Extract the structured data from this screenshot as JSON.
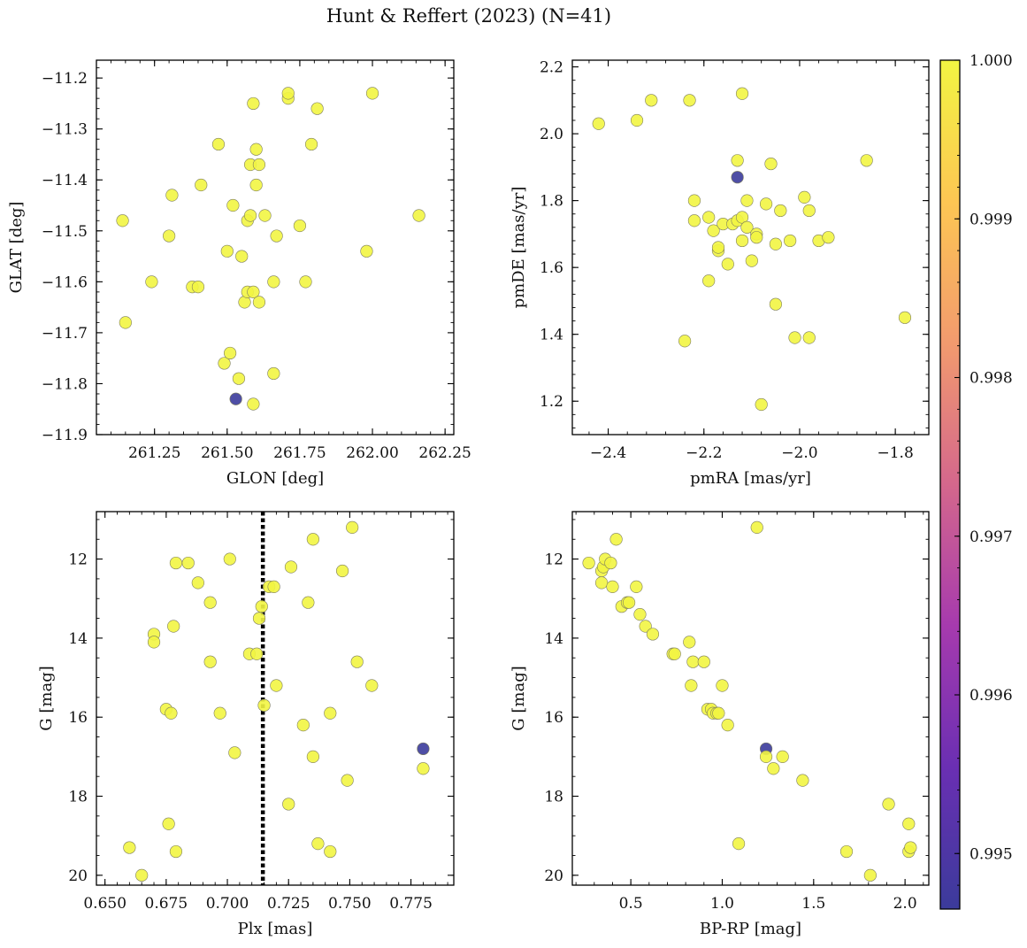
{
  "figure": {
    "title": "Hunt & Reffert (2023) (N=41)"
  },
  "colormap": {
    "name": "plasma",
    "vmin": 0.99465,
    "vmax": 1.0,
    "ticks": [
      0.995,
      0.996,
      0.997,
      0.998,
      0.999,
      1.0
    ],
    "tick_labels": [
      "0.995",
      "0.996",
      "0.997",
      "0.998",
      "0.999",
      "1.000"
    ],
    "stops": [
      "#3b3b9b",
      "#6a2fb3",
      "#a63aae",
      "#d4678c",
      "#f29a6e",
      "#fdc653",
      "#f2f542"
    ]
  },
  "chart_data": [
    {
      "type": "scatter",
      "xlabel": "GLON [deg]",
      "ylabel": "GLAT [deg]",
      "xlim": [
        261.05,
        262.28
      ],
      "ylim": [
        -11.9,
        -11.165
      ],
      "invert_y": false,
      "xticks": [
        261.25,
        261.5,
        261.75,
        262.0,
        262.25
      ],
      "xtick_labels": [
        "261.25",
        "261.50",
        "261.75",
        "262.00",
        "262.25"
      ],
      "yticks": [
        -11.9,
        -11.8,
        -11.7,
        -11.6,
        -11.5,
        -11.4,
        -11.3,
        -11.2
      ],
      "ytick_labels": [
        "−11.9",
        "−11.8",
        "−11.7",
        "−11.6",
        "−11.5",
        "−11.4",
        "−11.3",
        "−11.2"
      ],
      "points": [
        [
          261.14,
          -11.48,
          1
        ],
        [
          261.15,
          -11.68,
          1
        ],
        [
          261.24,
          -11.6,
          1
        ],
        [
          261.3,
          -11.51,
          1
        ],
        [
          261.31,
          -11.43,
          1
        ],
        [
          261.38,
          -11.61,
          1
        ],
        [
          261.4,
          -11.61,
          1
        ],
        [
          261.41,
          -11.41,
          1
        ],
        [
          261.47,
          -11.33,
          1
        ],
        [
          261.49,
          -11.76,
          1
        ],
        [
          261.5,
          -11.54,
          1
        ],
        [
          261.51,
          -11.74,
          1
        ],
        [
          261.52,
          -11.45,
          1
        ],
        [
          261.54,
          -11.79,
          1
        ],
        [
          261.55,
          -11.55,
          1
        ],
        [
          261.56,
          -11.64,
          1
        ],
        [
          261.57,
          -11.62,
          1
        ],
        [
          261.57,
          -11.48,
          1
        ],
        [
          261.58,
          -11.47,
          1
        ],
        [
          261.58,
          -11.37,
          1
        ],
        [
          261.59,
          -11.62,
          1
        ],
        [
          261.59,
          -11.84,
          1
        ],
        [
          261.59,
          -11.25,
          1
        ],
        [
          261.6,
          -11.34,
          1
        ],
        [
          261.6,
          -11.41,
          1
        ],
        [
          261.61,
          -11.37,
          1
        ],
        [
          261.61,
          -11.64,
          1
        ],
        [
          261.63,
          -11.47,
          1
        ],
        [
          261.66,
          -11.6,
          1
        ],
        [
          261.66,
          -11.78,
          1
        ],
        [
          261.67,
          -11.51,
          1
        ],
        [
          261.71,
          -11.24,
          1
        ],
        [
          261.71,
          -11.23,
          1
        ],
        [
          261.75,
          -11.49,
          1
        ],
        [
          261.77,
          -11.6,
          1
        ],
        [
          261.79,
          -11.33,
          1
        ],
        [
          261.81,
          -11.26,
          1
        ],
        [
          261.98,
          -11.54,
          1
        ],
        [
          262.0,
          -11.23,
          1
        ],
        [
          262.16,
          -11.47,
          1
        ],
        [
          261.53,
          -11.83,
          0.99465
        ]
      ]
    },
    {
      "type": "scatter",
      "xlabel": "pmRA [mas/yr]",
      "ylabel": "pmDE [mas/yr]",
      "xlim": [
        -2.475,
        -1.73
      ],
      "ylim": [
        1.1,
        2.22
      ],
      "invert_y": false,
      "xticks": [
        -2.4,
        -2.2,
        -2.0,
        -1.8
      ],
      "xtick_labels": [
        "−2.4",
        "−2.2",
        "−2.0",
        "−1.8"
      ],
      "yticks": [
        1.2,
        1.4,
        1.6,
        1.8,
        2.0,
        2.2
      ],
      "ytick_labels": [
        "1.2",
        "1.4",
        "1.6",
        "1.8",
        "2.0",
        "2.2"
      ],
      "points": [
        [
          -2.42,
          2.03,
          1
        ],
        [
          -2.34,
          2.04,
          1
        ],
        [
          -2.31,
          2.1,
          1
        ],
        [
          -2.23,
          2.1,
          1
        ],
        [
          -2.12,
          2.12,
          1
        ],
        [
          -2.13,
          1.92,
          1
        ],
        [
          -2.06,
          1.91,
          1
        ],
        [
          -1.86,
          1.92,
          1
        ],
        [
          -2.22,
          1.8,
          1
        ],
        [
          -2.22,
          1.74,
          1
        ],
        [
          -2.19,
          1.75,
          1
        ],
        [
          -2.18,
          1.71,
          1
        ],
        [
          -2.17,
          1.65,
          1
        ],
        [
          -2.16,
          1.73,
          1
        ],
        [
          -2.14,
          1.73,
          1
        ],
        [
          -2.13,
          1.74,
          1
        ],
        [
          -2.15,
          1.61,
          1
        ],
        [
          -2.12,
          1.75,
          1
        ],
        [
          -2.11,
          1.8,
          1
        ],
        [
          -2.11,
          1.72,
          1
        ],
        [
          -2.12,
          1.68,
          1
        ],
        [
          -2.1,
          1.62,
          1
        ],
        [
          -2.09,
          1.7,
          1
        ],
        [
          -2.09,
          1.69,
          1
        ],
        [
          -2.07,
          1.79,
          1
        ],
        [
          -2.05,
          1.67,
          1
        ],
        [
          -2.04,
          1.77,
          1
        ],
        [
          -2.05,
          1.49,
          1
        ],
        [
          -2.02,
          1.68,
          1
        ],
        [
          -2.01,
          1.39,
          1
        ],
        [
          -1.99,
          1.81,
          1
        ],
        [
          -1.98,
          1.77,
          1
        ],
        [
          -1.98,
          1.39,
          1
        ],
        [
          -1.96,
          1.68,
          1
        ],
        [
          -1.94,
          1.69,
          1
        ],
        [
          -1.78,
          1.45,
          1
        ],
        [
          -2.24,
          1.38,
          1
        ],
        [
          -2.19,
          1.56,
          1
        ],
        [
          -2.08,
          1.19,
          1
        ],
        [
          -2.17,
          1.66,
          1
        ],
        [
          -2.13,
          1.87,
          0.99465
        ]
      ]
    },
    {
      "type": "scatter",
      "xlabel": "Plx [mas]",
      "ylabel": "G [mag]",
      "xlim": [
        0.6465,
        0.7925
      ],
      "ylim": [
        20.25,
        10.8
      ],
      "invert_y": true,
      "reference_line": {
        "x": 0.7145,
        "style": "dotted",
        "color": "#000000"
      },
      "xticks": [
        0.65,
        0.675,
        0.7,
        0.725,
        0.75,
        0.775
      ],
      "xtick_labels": [
        "0.650",
        "0.675",
        "0.700",
        "0.725",
        "0.750",
        "0.775"
      ],
      "yticks": [
        12,
        14,
        16,
        18,
        20
      ],
      "ytick_labels": [
        "12",
        "14",
        "16",
        "18",
        "20"
      ],
      "points": [
        [
          0.66,
          19.3,
          1
        ],
        [
          0.665,
          20.0,
          1
        ],
        [
          0.67,
          13.9,
          1
        ],
        [
          0.67,
          14.1,
          1
        ],
        [
          0.675,
          15.8,
          1
        ],
        [
          0.677,
          15.9,
          1
        ],
        [
          0.676,
          18.7,
          1
        ],
        [
          0.678,
          13.7,
          1
        ],
        [
          0.679,
          12.1,
          1
        ],
        [
          0.679,
          19.4,
          1
        ],
        [
          0.684,
          12.1,
          1
        ],
        [
          0.688,
          12.6,
          1
        ],
        [
          0.693,
          13.1,
          1
        ],
        [
          0.693,
          14.6,
          1
        ],
        [
          0.697,
          15.9,
          1
        ],
        [
          0.701,
          12.0,
          1
        ],
        [
          0.703,
          16.9,
          1
        ],
        [
          0.709,
          14.4,
          1
        ],
        [
          0.712,
          14.4,
          1
        ],
        [
          0.713,
          13.5,
          1
        ],
        [
          0.714,
          13.2,
          1
        ],
        [
          0.715,
          15.7,
          1
        ],
        [
          0.717,
          12.7,
          1
        ],
        [
          0.719,
          12.7,
          1
        ],
        [
          0.72,
          15.2,
          1
        ],
        [
          0.725,
          18.2,
          1
        ],
        [
          0.726,
          12.2,
          1
        ],
        [
          0.731,
          16.2,
          1
        ],
        [
          0.733,
          13.1,
          1
        ],
        [
          0.735,
          11.5,
          1
        ],
        [
          0.735,
          17.0,
          1
        ],
        [
          0.737,
          19.2,
          1
        ],
        [
          0.742,
          19.4,
          1
        ],
        [
          0.742,
          15.9,
          1
        ],
        [
          0.747,
          12.3,
          1
        ],
        [
          0.749,
          17.6,
          1
        ],
        [
          0.751,
          11.2,
          1
        ],
        [
          0.753,
          14.6,
          1
        ],
        [
          0.759,
          15.2,
          1
        ],
        [
          0.78,
          17.3,
          1
        ],
        [
          0.78,
          16.8,
          0.99465
        ]
      ]
    },
    {
      "type": "scatter",
      "xlabel": "BP-RP [mag]",
      "ylabel": "G [mag]",
      "xlim": [
        0.18,
        2.13
      ],
      "ylim": [
        20.25,
        10.8
      ],
      "invert_y": true,
      "xticks": [
        0.5,
        1.0,
        1.5,
        2.0
      ],
      "xtick_labels": [
        "0.5",
        "1.0",
        "1.5",
        "2.0"
      ],
      "yticks": [
        12,
        14,
        16,
        18,
        20
      ],
      "ytick_labels": [
        "12",
        "14",
        "16",
        "18",
        "20"
      ],
      "points": [
        [
          0.27,
          12.1,
          1
        ],
        [
          0.34,
          12.3,
          1
        ],
        [
          0.34,
          12.6,
          1
        ],
        [
          0.35,
          12.2,
          1
        ],
        [
          0.36,
          12.0,
          1
        ],
        [
          0.39,
          12.1,
          1
        ],
        [
          0.4,
          12.7,
          1
        ],
        [
          0.42,
          11.5,
          1
        ],
        [
          0.45,
          13.2,
          1
        ],
        [
          0.48,
          13.1,
          1
        ],
        [
          0.49,
          13.1,
          1
        ],
        [
          0.53,
          12.7,
          1
        ],
        [
          0.55,
          13.4,
          1
        ],
        [
          0.58,
          13.7,
          1
        ],
        [
          0.62,
          13.9,
          1
        ],
        [
          0.73,
          14.4,
          1
        ],
        [
          0.74,
          14.4,
          1
        ],
        [
          0.82,
          14.1,
          1
        ],
        [
          0.83,
          15.2,
          1
        ],
        [
          0.84,
          14.6,
          1
        ],
        [
          0.9,
          14.6,
          1
        ],
        [
          0.92,
          15.8,
          1
        ],
        [
          0.94,
          15.8,
          1
        ],
        [
          0.95,
          15.9,
          1
        ],
        [
          0.97,
          15.9,
          1
        ],
        [
          1.0,
          15.2,
          1
        ],
        [
          1.03,
          16.2,
          1
        ],
        [
          1.09,
          19.2,
          1
        ],
        [
          1.19,
          11.2,
          1
        ],
        [
          1.24,
          17.0,
          1
        ],
        [
          1.28,
          17.3,
          1
        ],
        [
          1.33,
          17.0,
          1
        ],
        [
          1.44,
          17.6,
          1
        ],
        [
          1.68,
          19.4,
          1
        ],
        [
          1.81,
          20.0,
          1
        ],
        [
          1.91,
          18.2,
          1
        ],
        [
          2.02,
          18.7,
          1
        ],
        [
          2.02,
          19.4,
          1
        ],
        [
          2.03,
          19.3,
          1
        ],
        [
          0.98,
          15.9,
          1
        ],
        [
          1.24,
          16.8,
          0.99465
        ]
      ]
    }
  ]
}
